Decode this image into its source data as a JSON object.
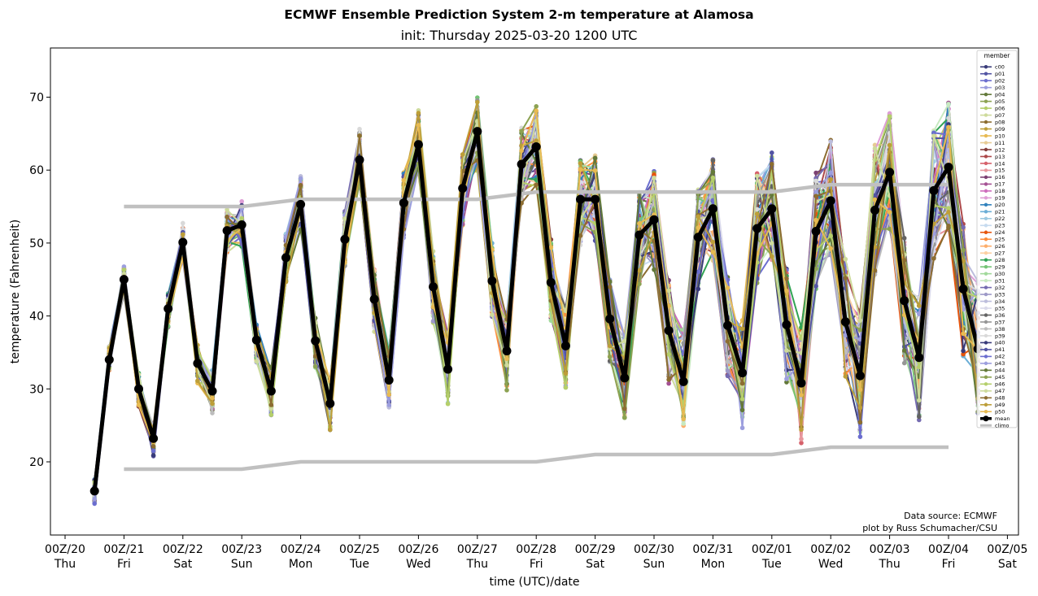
{
  "chart_data": {
    "type": "line",
    "title": "ECMWF Ensemble Prediction System 2-m temperature at Alamosa",
    "subtitle": "init: Thursday 2025-03-20 1200 UTC",
    "xlabel": "time (UTC)/date",
    "ylabel": "temperature (Fahrenheit)",
    "ylim": [
      10,
      77
    ],
    "xlim_days": [
      -0.05,
      16.05
    ],
    "yticks": [
      20,
      30,
      40,
      50,
      60,
      70
    ],
    "xticks": [
      {
        "line1": "00Z/20",
        "line2": "Thu"
      },
      {
        "line1": "00Z/21",
        "line2": "Fri"
      },
      {
        "line1": "00Z/22",
        "line2": "Sat"
      },
      {
        "line1": "00Z/23",
        "line2": "Sun"
      },
      {
        "line1": "00Z/24",
        "line2": "Mon"
      },
      {
        "line1": "00Z/25",
        "line2": "Tue"
      },
      {
        "line1": "00Z/26",
        "line2": "Wed"
      },
      {
        "line1": "00Z/27",
        "line2": "Thu"
      },
      {
        "line1": "00Z/28",
        "line2": "Fri"
      },
      {
        "line1": "00Z/29",
        "line2": "Sat"
      },
      {
        "line1": "00Z/30",
        "line2": "Sun"
      },
      {
        "line1": "00Z/31",
        "line2": "Mon"
      },
      {
        "line1": "00Z/01",
        "line2": "Tue"
      },
      {
        "line1": "00Z/02",
        "line2": "Wed"
      },
      {
        "line1": "00Z/03",
        "line2": "Thu"
      },
      {
        "line1": "00Z/04",
        "line2": "Fri"
      },
      {
        "line1": "00Z/05",
        "line2": "Sat"
      }
    ],
    "time_step_hours": 6,
    "start_day_offset": 0.5,
    "mean": {
      "name": "mean",
      "color": "#000000",
      "values": [
        16,
        34,
        45,
        30,
        23.2,
        41,
        50.1,
        33.5,
        29.7,
        51.7,
        52.5,
        36.7,
        29.7,
        48,
        55.3,
        36.6,
        28,
        50.5,
        61.4,
        42.3,
        31.2,
        55.5,
        63.5,
        44,
        32.7,
        57.5,
        65.3,
        44.8,
        35.2,
        60.8,
        63.2,
        44.6,
        35.9,
        56,
        56,
        39.6,
        31.5,
        51.1,
        53.2,
        38,
        31,
        50.8,
        54.7,
        38.7,
        32.2,
        52,
        54.7,
        38.8,
        30.8,
        51.6,
        55.8,
        39.2,
        31.8,
        54.5,
        59.7,
        42.1,
        34.3,
        57.2,
        60.4,
        43.7,
        35.5
      ]
    },
    "climo": {
      "name": "climo",
      "color": "#c0c0c0",
      "days": [
        1,
        2,
        3,
        4,
        5,
        6,
        7,
        8,
        9,
        10,
        11,
        12,
        13,
        14,
        15
      ],
      "high": [
        55,
        55,
        55,
        56,
        56,
        56,
        56,
        57,
        57,
        57,
        57,
        57,
        58,
        58,
        58
      ],
      "low": [
        19,
        19,
        19,
        20,
        20,
        20,
        20,
        20,
        21,
        21,
        21,
        21,
        22,
        22,
        22
      ]
    },
    "legend": {
      "title": "member",
      "placement": "right",
      "members": [
        {
          "name": "c00",
          "color": "#393b79"
        },
        {
          "name": "p01",
          "color": "#5254a3"
        },
        {
          "name": "p02",
          "color": "#6b6ecf"
        },
        {
          "name": "p03",
          "color": "#9c9ede"
        },
        {
          "name": "p04",
          "color": "#637939"
        },
        {
          "name": "p05",
          "color": "#8ca252"
        },
        {
          "name": "p06",
          "color": "#b5cf6b"
        },
        {
          "name": "p07",
          "color": "#cedb9c"
        },
        {
          "name": "p08",
          "color": "#8c6d31"
        },
        {
          "name": "p09",
          "color": "#bd9e39"
        },
        {
          "name": "p10",
          "color": "#e7ba52"
        },
        {
          "name": "p11",
          "color": "#e7cb94"
        },
        {
          "name": "p12",
          "color": "#843c39"
        },
        {
          "name": "p13",
          "color": "#ad494a"
        },
        {
          "name": "p14",
          "color": "#d6616b"
        },
        {
          "name": "p15",
          "color": "#e7969c"
        },
        {
          "name": "p16",
          "color": "#7b4173"
        },
        {
          "name": "p17",
          "color": "#a55194"
        },
        {
          "name": "p18",
          "color": "#ce6dbd"
        },
        {
          "name": "p19",
          "color": "#de9ed6"
        },
        {
          "name": "p20",
          "color": "#3182bd"
        },
        {
          "name": "p21",
          "color": "#6baed6"
        },
        {
          "name": "p22",
          "color": "#9ecae1"
        },
        {
          "name": "p23",
          "color": "#c6dbef"
        },
        {
          "name": "p24",
          "color": "#e6550d"
        },
        {
          "name": "p25",
          "color": "#fd8d3c"
        },
        {
          "name": "p26",
          "color": "#fdae6b"
        },
        {
          "name": "p27",
          "color": "#fdd0a2"
        },
        {
          "name": "p28",
          "color": "#31a354"
        },
        {
          "name": "p29",
          "color": "#74c476"
        },
        {
          "name": "p30",
          "color": "#a1d99b"
        },
        {
          "name": "p31",
          "color": "#c7e9c0"
        },
        {
          "name": "p32",
          "color": "#756bb1"
        },
        {
          "name": "p33",
          "color": "#9e9ac8"
        },
        {
          "name": "p34",
          "color": "#bcbddc"
        },
        {
          "name": "p35",
          "color": "#dadaeb"
        },
        {
          "name": "p36",
          "color": "#636363"
        },
        {
          "name": "p37",
          "color": "#969696"
        },
        {
          "name": "p38",
          "color": "#bdbdbd"
        },
        {
          "name": "p39",
          "color": "#d9d9d9"
        },
        {
          "name": "p40",
          "color": "#393b79"
        },
        {
          "name": "p41",
          "color": "#5254a3"
        },
        {
          "name": "p42",
          "color": "#6b6ecf"
        },
        {
          "name": "p43",
          "color": "#9c9ede"
        },
        {
          "name": "p44",
          "color": "#637939"
        },
        {
          "name": "p45",
          "color": "#8ca252"
        },
        {
          "name": "p46",
          "color": "#b5cf6b"
        },
        {
          "name": "p47",
          "color": "#cedb9c"
        },
        {
          "name": "p48",
          "color": "#8c6d31"
        },
        {
          "name": "p49",
          "color": "#bd9e39"
        },
        {
          "name": "p50",
          "color": "#e7ba52"
        }
      ],
      "extra": [
        {
          "name": "mean",
          "color": "#000000"
        },
        {
          "name": "climo",
          "color": "#c0c0c0"
        }
      ]
    },
    "annotations": [
      "Data source: ECMWF",
      "plot by Russ Schumacher/CSU"
    ]
  }
}
